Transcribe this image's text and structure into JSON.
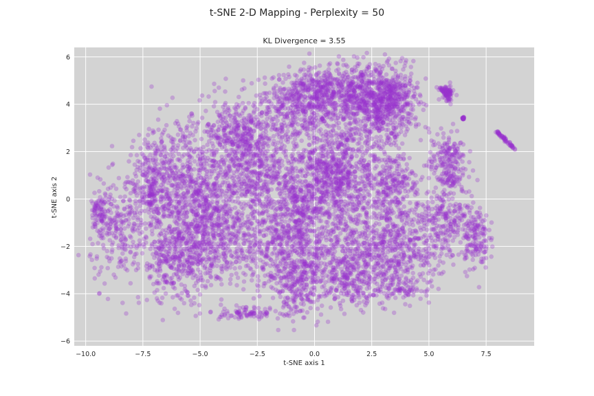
{
  "chart_data": {
    "type": "scatter",
    "suptitle": "t-SNE 2-D Mapping - Perplexity = 50",
    "title": "KL Divergence = 3.55",
    "xlabel": "t-SNE axis 1",
    "ylabel": "t-SNE axis 2",
    "xlim": [
      -10.5,
      9.6
    ],
    "ylim": [
      -6.2,
      6.4
    ],
    "xticks": [
      -10.0,
      -7.5,
      -5.0,
      -2.5,
      0.0,
      2.5,
      5.0,
      7.5
    ],
    "xtick_labels": [
      "−10.0",
      "−7.5",
      "−5.0",
      "−2.5",
      "0.0",
      "2.5",
      "5.0",
      "7.5"
    ],
    "yticks": [
      -6,
      -4,
      -2,
      0,
      2,
      4,
      6
    ],
    "ytick_labels": [
      "−6",
      "−4",
      "−2",
      "0",
      "2",
      "4",
      "6"
    ],
    "grid": true,
    "legend": false,
    "background_color": "#d3d3d3",
    "point_color": "#9932cc",
    "point_alpha": 0.3,
    "clusters": [
      {
        "cx": 0.3,
        "cy": 4.5,
        "sx": 1.2,
        "sy": 0.5,
        "n": 520
      },
      {
        "cx": 2.5,
        "cy": 4.0,
        "sx": 0.9,
        "sy": 0.9,
        "n": 620
      },
      {
        "cx": 3.4,
        "cy": 4.2,
        "sx": 0.5,
        "sy": 0.6,
        "n": 260
      },
      {
        "cx": -1.0,
        "cy": 3.6,
        "sx": 1.3,
        "sy": 0.6,
        "n": 300
      },
      {
        "cx": -3.5,
        "cy": 2.8,
        "sx": 0.8,
        "sy": 0.7,
        "n": 230
      },
      {
        "cx": -3.0,
        "cy": 1.3,
        "sx": 0.7,
        "sy": 1.0,
        "n": 400
      },
      {
        "cx": -1.0,
        "cy": 1.0,
        "sx": 0.9,
        "sy": 1.2,
        "n": 380
      },
      {
        "cx": 0.8,
        "cy": 1.0,
        "sx": 0.6,
        "sy": 1.0,
        "n": 420
      },
      {
        "cx": 2.0,
        "cy": 0.8,
        "sx": 0.9,
        "sy": 1.3,
        "n": 360
      },
      {
        "cx": -6.0,
        "cy": 0.5,
        "sx": 0.9,
        "sy": 1.4,
        "n": 600
      },
      {
        "cx": -4.8,
        "cy": -0.5,
        "sx": 0.7,
        "sy": 1.2,
        "n": 330
      },
      {
        "cx": -7.2,
        "cy": 0.6,
        "sx": 0.4,
        "sy": 0.8,
        "n": 160
      },
      {
        "cx": -6.0,
        "cy": -2.6,
        "sx": 0.8,
        "sy": 0.9,
        "n": 380
      },
      {
        "cx": -3.8,
        "cy": -1.6,
        "sx": 0.8,
        "sy": 0.9,
        "n": 280
      },
      {
        "cx": -2.0,
        "cy": -1.8,
        "sx": 0.8,
        "sy": 1.0,
        "n": 300
      },
      {
        "cx": -0.6,
        "cy": -1.0,
        "sx": 0.5,
        "sy": 1.3,
        "n": 320
      },
      {
        "cx": -0.8,
        "cy": -3.6,
        "sx": 0.6,
        "sy": 0.7,
        "n": 220
      },
      {
        "cx": 1.2,
        "cy": -1.8,
        "sx": 0.8,
        "sy": 0.8,
        "n": 280
      },
      {
        "cx": 1.6,
        "cy": -3.4,
        "sx": 1.0,
        "sy": 0.6,
        "n": 320
      },
      {
        "cx": 3.3,
        "cy": -2.0,
        "sx": 0.6,
        "sy": 1.1,
        "n": 350
      },
      {
        "cx": 3.6,
        "cy": 0.8,
        "sx": 0.5,
        "sy": 0.6,
        "n": 150
      },
      {
        "cx": 4.8,
        "cy": -1.8,
        "sx": 0.6,
        "sy": 0.9,
        "n": 200
      },
      {
        "cx": 5.8,
        "cy": 1.5,
        "sx": 0.4,
        "sy": 0.7,
        "n": 220
      },
      {
        "cx": 5.9,
        "cy": -0.6,
        "sx": 0.5,
        "sy": 0.6,
        "n": 150
      },
      {
        "cx": 7.0,
        "cy": -1.6,
        "sx": 0.3,
        "sy": 0.7,
        "n": 160
      },
      {
        "cx": -8.6,
        "cy": -1.4,
        "sx": 0.6,
        "sy": 1.1,
        "n": 230
      },
      {
        "cx": -9.4,
        "cy": -0.6,
        "sx": 0.2,
        "sy": 0.4,
        "n": 70
      },
      {
        "cx": -3.0,
        "cy": -4.8,
        "sx": 0.8,
        "sy": 0.12,
        "n": 90
      },
      {
        "cx": 4.0,
        "cy": -3.8,
        "sx": 0.4,
        "sy": 0.2,
        "n": 60
      },
      {
        "cx": 5.8,
        "cy": 4.5,
        "sx": 0.15,
        "sy": 0.15,
        "n": 60
      },
      {
        "cx": 6.5,
        "cy": 3.4,
        "sx": 0.02,
        "sy": 0.03,
        "n": 20
      }
    ],
    "segments": [
      {
        "x0": 7.95,
        "y0": 2.85,
        "x1": 8.75,
        "y1": 2.1,
        "n": 60
      },
      {
        "x0": 5.5,
        "y0": 4.7,
        "x1": 5.95,
        "y1": 4.2,
        "n": 30
      }
    ]
  }
}
